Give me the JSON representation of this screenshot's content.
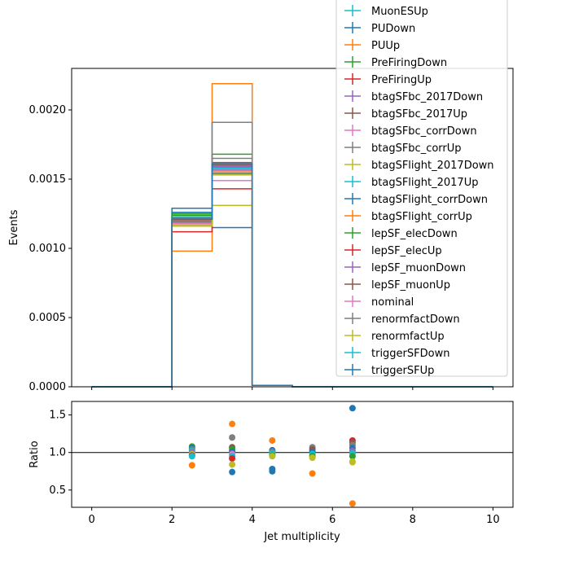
{
  "chart_data": [
    {
      "type": "step-histogram",
      "panel": "main",
      "xlabel": "",
      "ylabel": "Events",
      "xlim": [
        -0.5,
        10.5
      ],
      "ylim": [
        0,
        0.0023
      ],
      "ytick_labels": [
        "0.0000",
        "0.0005",
        "0.0010",
        "0.0015",
        "0.0020"
      ],
      "ytick_values": [
        0,
        0.0005,
        0.001,
        0.0015,
        0.002
      ],
      "bin_edges": [
        0,
        1,
        2,
        3,
        4,
        5,
        6,
        7,
        8,
        9,
        10
      ],
      "legend_position": "upper right, extending above the axes",
      "series": [
        {
          "name": "MuonESUp",
          "color": "#17becf",
          "values": [
            0,
            0,
            0.00121,
            0.00159,
            1e-05,
            0,
            0,
            0,
            0,
            0
          ]
        },
        {
          "name": "PUDown",
          "color": "#1f77b4",
          "values": [
            0,
            0,
            0.00129,
            0.00115,
            1e-05,
            0,
            0,
            0,
            0,
            0
          ]
        },
        {
          "name": "PUUp",
          "color": "#ff7f0e",
          "values": [
            0,
            0,
            0.00098,
            0.00219,
            1e-05,
            0,
            0,
            0,
            0,
            0
          ]
        },
        {
          "name": "PreFiringDown",
          "color": "#2ca02c",
          "values": [
            0,
            0,
            0.00125,
            0.00168,
            1e-05,
            0,
            0,
            0,
            0,
            0
          ]
        },
        {
          "name": "PreFiringUp",
          "color": "#d62728",
          "values": [
            0,
            0,
            0.00112,
            0.00143,
            1e-05,
            0,
            0,
            0,
            0,
            0
          ]
        },
        {
          "name": "btagSFbc_2017Down",
          "color": "#9467bd",
          "values": [
            0,
            0,
            0.00119,
            0.00157,
            1e-05,
            0,
            0,
            0,
            0,
            0
          ]
        },
        {
          "name": "btagSFbc_2017Up",
          "color": "#8c564b",
          "values": [
            0,
            0,
            0.00122,
            0.00162,
            1e-05,
            0,
            0,
            0,
            0,
            0
          ]
        },
        {
          "name": "btagSFbc_corrDown",
          "color": "#e377c2",
          "values": [
            0,
            0,
            0.00117,
            0.00149,
            1e-05,
            0,
            0,
            0,
            0,
            0
          ]
        },
        {
          "name": "btagSFbc_corrUp",
          "color": "#7f7f7f",
          "values": [
            0,
            0,
            0.00124,
            0.00191,
            1e-05,
            0,
            0,
            0,
            0,
            0
          ]
        },
        {
          "name": "btagSFlight_2017Down",
          "color": "#bcbd22",
          "values": [
            0,
            0,
            0.00116,
            0.00131,
            1e-05,
            0,
            0,
            0,
            0,
            0
          ]
        },
        {
          "name": "btagSFlight_2017Up",
          "color": "#17becf",
          "values": [
            0,
            0,
            0.00123,
            0.00161,
            1e-05,
            0,
            0,
            0,
            0,
            0
          ]
        },
        {
          "name": "btagSFlight_corrDown",
          "color": "#1f77b4",
          "values": [
            0,
            0,
            0.00126,
            0.0016,
            1e-05,
            0,
            0,
            0,
            0,
            0
          ]
        },
        {
          "name": "btagSFlight_corrUp",
          "color": "#ff7f0e",
          "values": [
            0,
            0,
            0.0012,
            0.00156,
            1e-05,
            0,
            0,
            0,
            0,
            0
          ]
        },
        {
          "name": "lepSF_elecDown",
          "color": "#2ca02c",
          "values": [
            0,
            0,
            0.00124,
            0.00154,
            1e-05,
            0,
            0,
            0,
            0,
            0
          ]
        },
        {
          "name": "lepSF_elecUp",
          "color": "#d62728",
          "values": [
            0,
            0,
            0.00118,
            0.00158,
            1e-05,
            0,
            0,
            0,
            0,
            0
          ]
        },
        {
          "name": "lepSF_muonDown",
          "color": "#9467bd",
          "values": [
            0,
            0,
            0.00121,
            0.00159,
            1e-05,
            0,
            0,
            0,
            0,
            0
          ]
        },
        {
          "name": "lepSF_muonUp",
          "color": "#8c564b",
          "values": [
            0,
            0,
            0.0012,
            0.0016,
            1e-05,
            0,
            0,
            0,
            0,
            0
          ]
        },
        {
          "name": "nominal",
          "color": "#e377c2",
          "values": [
            0,
            0,
            0.00118,
            0.00155,
            1e-05,
            0,
            0,
            0,
            0,
            0
          ]
        },
        {
          "name": "renormfactDown",
          "color": "#7f7f7f",
          "values": [
            0,
            0,
            0.00119,
            0.00165,
            1e-05,
            0,
            0,
            0,
            0,
            0
          ]
        },
        {
          "name": "renormfactUp",
          "color": "#bcbd22",
          "values": [
            0,
            0,
            0.00117,
            0.00153,
            1e-05,
            0,
            0,
            0,
            0,
            0
          ]
        },
        {
          "name": "triggerSFDown",
          "color": "#17becf",
          "values": [
            0,
            0,
            0.00121,
            0.00158,
            1e-05,
            0,
            0,
            0,
            0,
            0
          ]
        },
        {
          "name": "triggerSFUp",
          "color": "#1f77b4",
          "values": [
            0,
            0,
            0.00121,
            0.00161,
            1e-05,
            0,
            0,
            0,
            0,
            0
          ]
        }
      ]
    },
    {
      "type": "scatter",
      "panel": "ratio",
      "xlabel": "Jet multiplicity",
      "ylabel": "Ratio",
      "xlim": [
        -0.5,
        10.5
      ],
      "ylim": [
        0.27,
        1.68
      ],
      "xtick_values": [
        0,
        2,
        4,
        6,
        8,
        10
      ],
      "xtick_labels": [
        "0",
        "2",
        "4",
        "6",
        "8",
        "10"
      ],
      "ytick_values": [
        0.5,
        1.0,
        1.5
      ],
      "ytick_labels": [
        "0.5",
        "1.0",
        "1.5"
      ],
      "reference_line": 1.0,
      "points": [
        {
          "x": 2.5,
          "y": 1.08,
          "color": "#2ca02c"
        },
        {
          "x": 2.5,
          "y": 1.06,
          "color": "#1f77b4"
        },
        {
          "x": 2.5,
          "y": 1.04,
          "color": "#7f7f7f"
        },
        {
          "x": 2.5,
          "y": 1.02,
          "color": "#17becf"
        },
        {
          "x": 2.5,
          "y": 1.0,
          "color": "#9467bd"
        },
        {
          "x": 2.5,
          "y": 0.98,
          "color": "#bcbd22"
        },
        {
          "x": 2.5,
          "y": 0.96,
          "color": "#d62728"
        },
        {
          "x": 2.5,
          "y": 0.95,
          "color": "#17becf"
        },
        {
          "x": 2.5,
          "y": 0.83,
          "color": "#ff7f0e"
        },
        {
          "x": 3.5,
          "y": 1.38,
          "color": "#ff7f0e"
        },
        {
          "x": 3.5,
          "y": 1.2,
          "color": "#7f7f7f"
        },
        {
          "x": 3.5,
          "y": 1.07,
          "color": "#8c564b"
        },
        {
          "x": 3.5,
          "y": 1.04,
          "color": "#2ca02c"
        },
        {
          "x": 3.5,
          "y": 1.01,
          "color": "#1f77b4"
        },
        {
          "x": 3.5,
          "y": 0.98,
          "color": "#e377c2"
        },
        {
          "x": 3.5,
          "y": 0.95,
          "color": "#17becf"
        },
        {
          "x": 3.5,
          "y": 0.92,
          "color": "#d62728"
        },
        {
          "x": 3.5,
          "y": 0.84,
          "color": "#bcbd22"
        },
        {
          "x": 3.5,
          "y": 0.74,
          "color": "#1f77b4"
        },
        {
          "x": 4.5,
          "y": 1.16,
          "color": "#ff7f0e"
        },
        {
          "x": 4.5,
          "y": 1.03,
          "color": "#1f77b4"
        },
        {
          "x": 4.5,
          "y": 1.01,
          "color": "#7f7f7f"
        },
        {
          "x": 4.5,
          "y": 0.99,
          "color": "#17becf"
        },
        {
          "x": 4.5,
          "y": 0.96,
          "color": "#2ca02c"
        },
        {
          "x": 4.5,
          "y": 0.95,
          "color": "#bcbd22"
        },
        {
          "x": 4.5,
          "y": 0.78,
          "color": "#1f77b4"
        },
        {
          "x": 4.5,
          "y": 0.75,
          "color": "#1f77b4"
        },
        {
          "x": 5.5,
          "y": 1.07,
          "color": "#7f7f7f"
        },
        {
          "x": 5.5,
          "y": 1.04,
          "color": "#8c564b"
        },
        {
          "x": 5.5,
          "y": 1.01,
          "color": "#1f77b4"
        },
        {
          "x": 5.5,
          "y": 0.98,
          "color": "#17becf"
        },
        {
          "x": 5.5,
          "y": 0.95,
          "color": "#2ca02c"
        },
        {
          "x": 5.5,
          "y": 0.93,
          "color": "#bcbd22"
        },
        {
          "x": 5.5,
          "y": 0.72,
          "color": "#ff7f0e"
        },
        {
          "x": 6.5,
          "y": 1.59,
          "color": "#1f77b4"
        },
        {
          "x": 6.5,
          "y": 1.16,
          "color": "#d62728"
        },
        {
          "x": 6.5,
          "y": 1.13,
          "color": "#8c564b"
        },
        {
          "x": 6.5,
          "y": 1.1,
          "color": "#7f7f7f"
        },
        {
          "x": 6.5,
          "y": 1.06,
          "color": "#1f77b4"
        },
        {
          "x": 6.5,
          "y": 1.02,
          "color": "#9467bd"
        },
        {
          "x": 6.5,
          "y": 0.99,
          "color": "#17becf"
        },
        {
          "x": 6.5,
          "y": 0.95,
          "color": "#2ca02c"
        },
        {
          "x": 6.5,
          "y": 0.88,
          "color": "#bcbd22"
        },
        {
          "x": 6.5,
          "y": 0.87,
          "color": "#bcbd22"
        },
        {
          "x": 6.5,
          "y": 0.32,
          "color": "#ff7f0e"
        }
      ]
    }
  ]
}
